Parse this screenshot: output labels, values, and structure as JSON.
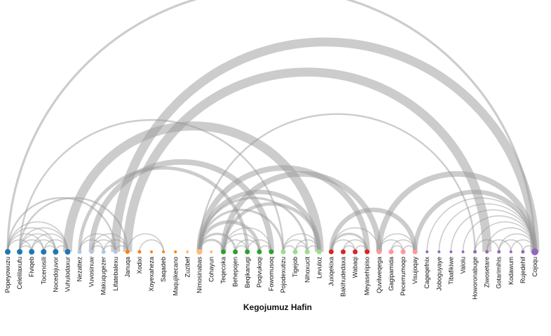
{
  "title": "Kegojumuz Hafin",
  "colors": {
    "link": "#9a9a9a",
    "groups": [
      "#1f77b4",
      "#aec7e8",
      "#ff7f0e",
      "#ffbb78",
      "#2ca02c",
      "#98df8a",
      "#d62728",
      "#ff9896",
      "#9467bd"
    ]
  },
  "nodes": [
    {
      "name": "Popeyowuzu",
      "group": 0,
      "size": 4
    },
    {
      "name": "Celelilaxufu",
      "group": 0,
      "size": 4
    },
    {
      "name": "Fiviqeb",
      "group": 0,
      "size": 4
    },
    {
      "name": "Tocenosili",
      "group": 0,
      "size": 4
    },
    {
      "name": "Nocedojuvor",
      "group": 0,
      "size": 4
    },
    {
      "name": "Vuhulodaxur",
      "group": 0,
      "size": 4
    },
    {
      "name": "Nezattez",
      "group": 1,
      "size": 3
    },
    {
      "name": "Vuvosinuw",
      "group": 1,
      "size": 3
    },
    {
      "name": "Makuqugezer",
      "group": 1,
      "size": 3
    },
    {
      "name": "Lifatebalexu",
      "group": 1,
      "size": 3
    },
    {
      "name": "Januqa",
      "group": 2,
      "size": 3
    },
    {
      "name": "Xodixi",
      "group": 2,
      "size": 2.5
    },
    {
      "name": "Xoyexaheza",
      "group": 2,
      "size": 2
    },
    {
      "name": "Saqadeb",
      "group": 2,
      "size": 2
    },
    {
      "name": "Maqujikecano",
      "group": 2,
      "size": 2
    },
    {
      "name": "Zuzibef",
      "group": 3,
      "size": 2
    },
    {
      "name": "Nimosinabas",
      "group": 3,
      "size": 4
    },
    {
      "name": "Cohayun",
      "group": 3,
      "size": 2
    },
    {
      "name": "Teqecoka",
      "group": 4,
      "size": 3.5
    },
    {
      "name": "Behepojen",
      "group": 4,
      "size": 3.5
    },
    {
      "name": "Beqikanugi",
      "group": 4,
      "size": 3.5
    },
    {
      "name": "Poqivukoqi",
      "group": 4,
      "size": 3.5
    },
    {
      "name": "Fowomusoq",
      "group": 4,
      "size": 3.5
    },
    {
      "name": "Pojodexutizu",
      "group": 5,
      "size": 3.5
    },
    {
      "name": "Tigejob",
      "group": 5,
      "size": 3.5
    },
    {
      "name": "Nihoxucit",
      "group": 5,
      "size": 3.5
    },
    {
      "name": "Levuloz",
      "group": 5,
      "size": 3.5
    },
    {
      "name": "Juxiqekixa",
      "group": 6,
      "size": 3.5
    },
    {
      "name": "Bakihudedaxa",
      "group": 6,
      "size": 3.5
    },
    {
      "name": "Wabaqi",
      "group": 6,
      "size": 3.5
    },
    {
      "name": "Meyasehipiso",
      "group": 6,
      "size": 3.5
    },
    {
      "name": "Quvilweqega",
      "group": 7,
      "size": 3.5
    },
    {
      "name": "Gagipamida",
      "group": 7,
      "size": 3.5
    },
    {
      "name": "Pecemumoqo",
      "group": 7,
      "size": 3.5
    },
    {
      "name": "Visujoqay",
      "group": 7,
      "size": 3.5
    },
    {
      "name": "Cageqefnix",
      "group": 8,
      "size": 2
    },
    {
      "name": "Joboguyaye",
      "group": 8,
      "size": 2
    },
    {
      "name": "Tibafikiwe",
      "group": 8,
      "size": 2
    },
    {
      "name": "Valolu",
      "group": 8,
      "size": 2
    },
    {
      "name": "Howoronabuge",
      "group": 8,
      "size": 2.5
    },
    {
      "name": "Ziwosetare",
      "group": 8,
      "size": 2.5
    },
    {
      "name": "Gotarimihis",
      "group": 8,
      "size": 2.5
    },
    {
      "name": "Kodawum",
      "group": 8,
      "size": 2
    },
    {
      "name": "Rujedehif",
      "group": 8,
      "size": 2.5
    },
    {
      "name": "Cojoqu",
      "group": 8,
      "size": 5
    }
  ],
  "links": [
    {
      "source": 0,
      "target": 44,
      "value": 2
    },
    {
      "source": 9,
      "target": 44,
      "value": 8
    },
    {
      "source": 10,
      "target": 40,
      "value": 8
    },
    {
      "source": 1,
      "target": 23,
      "value": 1.5
    },
    {
      "source": 5,
      "target": 26,
      "value": 8
    },
    {
      "source": 16,
      "target": 39,
      "value": 1.5
    },
    {
      "source": 7,
      "target": 22,
      "value": 5
    },
    {
      "source": 6,
      "target": 20,
      "value": 3
    },
    {
      "source": 16,
      "target": 30,
      "value": 5
    },
    {
      "source": 18,
      "target": 31,
      "value": 5
    },
    {
      "source": 18,
      "target": 26,
      "value": 3
    },
    {
      "source": 31,
      "target": 44,
      "value": 5
    },
    {
      "source": 34,
      "target": 44,
      "value": 4
    },
    {
      "source": 27,
      "target": 34,
      "value": 4
    },
    {
      "source": 0,
      "target": 9,
      "value": 1.5
    },
    {
      "source": 1,
      "target": 10,
      "value": 1.5
    },
    {
      "source": 0,
      "target": 5,
      "value": 1
    },
    {
      "source": 1,
      "target": 5,
      "value": 1
    },
    {
      "source": 0,
      "target": 3,
      "value": 1
    },
    {
      "source": 2,
      "target": 5,
      "value": 1
    },
    {
      "source": 1,
      "target": 4,
      "value": 1
    },
    {
      "source": 0,
      "target": 4,
      "value": 1
    },
    {
      "source": 1,
      "target": 3,
      "value": 1
    },
    {
      "source": 2,
      "target": 4,
      "value": 1
    },
    {
      "source": 3,
      "target": 5,
      "value": 1
    },
    {
      "source": 0,
      "target": 2,
      "value": 1
    },
    {
      "source": 1,
      "target": 2,
      "value": 1
    },
    {
      "source": 3,
      "target": 4,
      "value": 1
    },
    {
      "source": 4,
      "target": 5,
      "value": 1
    },
    {
      "source": 6,
      "target": 9,
      "value": 1
    },
    {
      "source": 7,
      "target": 9,
      "value": 1
    },
    {
      "source": 7,
      "target": 10,
      "value": 1
    },
    {
      "source": 8,
      "target": 10,
      "value": 1
    },
    {
      "source": 6,
      "target": 8,
      "value": 1
    },
    {
      "source": 7,
      "target": 8,
      "value": 1
    },
    {
      "source": 8,
      "target": 9,
      "value": 1
    },
    {
      "source": 9,
      "target": 10,
      "value": 1
    },
    {
      "source": 10,
      "target": 13,
      "value": 1
    },
    {
      "source": 11,
      "target": 13,
      "value": 1
    },
    {
      "source": 16,
      "target": 18,
      "value": 2
    },
    {
      "source": 16,
      "target": 19,
      "value": 2
    },
    {
      "source": 16,
      "target": 21,
      "value": 3
    },
    {
      "source": 16,
      "target": 23,
      "value": 2
    },
    {
      "source": 16,
      "target": 25,
      "value": 2
    },
    {
      "source": 16,
      "target": 26,
      "value": 4
    },
    {
      "source": 18,
      "target": 21,
      "value": 1
    },
    {
      "source": 18,
      "target": 20,
      "value": 1
    },
    {
      "source": 19,
      "target": 21,
      "value": 1
    },
    {
      "source": 19,
      "target": 20,
      "value": 1
    },
    {
      "source": 20,
      "target": 22,
      "value": 1
    },
    {
      "source": 21,
      "target": 22,
      "value": 1
    },
    {
      "source": 18,
      "target": 22,
      "value": 1
    },
    {
      "source": 23,
      "target": 26,
      "value": 1
    },
    {
      "source": 23,
      "target": 25,
      "value": 1
    },
    {
      "source": 24,
      "target": 26,
      "value": 1
    },
    {
      "source": 24,
      "target": 25,
      "value": 1
    },
    {
      "source": 25,
      "target": 26,
      "value": 1
    },
    {
      "source": 23,
      "target": 24,
      "value": 1
    },
    {
      "source": 27,
      "target": 30,
      "value": 2
    },
    {
      "source": 27,
      "target": 29,
      "value": 1
    },
    {
      "source": 28,
      "target": 30,
      "value": 1
    },
    {
      "source": 28,
      "target": 29,
      "value": 1
    },
    {
      "source": 29,
      "target": 30,
      "value": 1
    },
    {
      "source": 27,
      "target": 31,
      "value": 1
    },
    {
      "source": 31,
      "target": 34,
      "value": 1
    },
    {
      "source": 31,
      "target": 33,
      "value": 1
    },
    {
      "source": 32,
      "target": 34,
      "value": 1
    },
    {
      "source": 32,
      "target": 33,
      "value": 1
    },
    {
      "source": 33,
      "target": 34,
      "value": 1
    },
    {
      "source": 35,
      "target": 44,
      "value": 1
    },
    {
      "source": 36,
      "target": 44,
      "value": 1
    },
    {
      "source": 37,
      "target": 44,
      "value": 1
    },
    {
      "source": 38,
      "target": 44,
      "value": 1
    },
    {
      "source": 39,
      "target": 44,
      "value": 1
    },
    {
      "source": 40,
      "target": 44,
      "value": 1
    },
    {
      "source": 41,
      "target": 44,
      "value": 1
    },
    {
      "source": 42,
      "target": 44,
      "value": 1
    },
    {
      "source": 43,
      "target": 44,
      "value": 1
    },
    {
      "source": 39,
      "target": 41,
      "value": 1
    },
    {
      "source": 40,
      "target": 42,
      "value": 1
    },
    {
      "source": 41,
      "target": 43,
      "value": 1
    }
  ]
}
